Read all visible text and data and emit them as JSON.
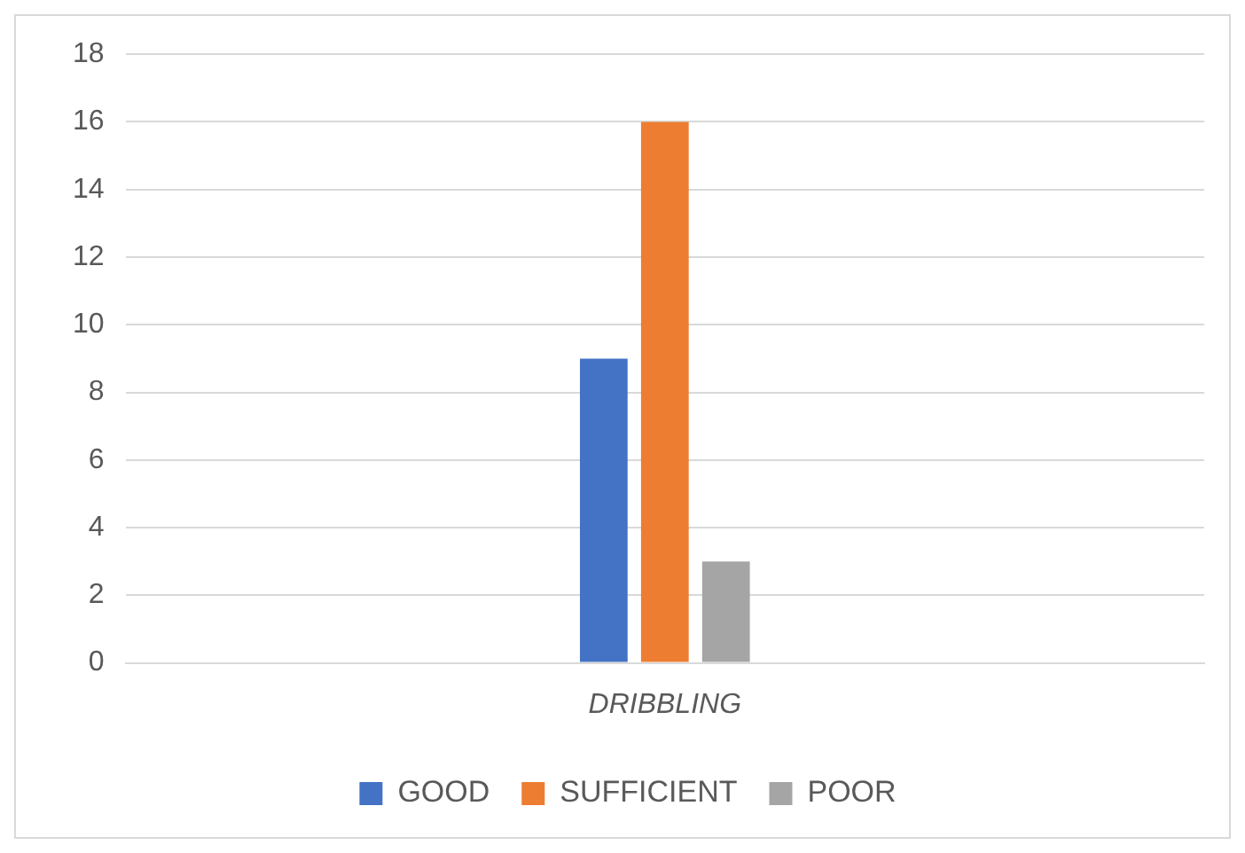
{
  "chart_data": {
    "type": "bar",
    "categories": [
      "DRIBBLING"
    ],
    "series": [
      {
        "name": "GOOD",
        "color": "#4472c4",
        "values": [
          9
        ]
      },
      {
        "name": "SUFFICIENT",
        "color": "#ed7d31",
        "values": [
          16
        ]
      },
      {
        "name": "POOR",
        "color": "#a5a5a5",
        "values": [
          3
        ]
      }
    ],
    "ylim": [
      0,
      18
    ],
    "yticks": [
      0,
      2,
      4,
      6,
      8,
      10,
      12,
      14,
      16,
      18
    ],
    "grid": "y",
    "legend": "bottom"
  }
}
